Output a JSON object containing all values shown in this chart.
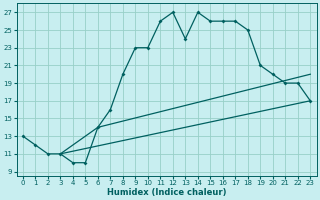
{
  "xlabel": "Humidex (Indice chaleur)",
  "bg_color": "#c8eef0",
  "grid_color": "#98d0c8",
  "line_color": "#006060",
  "xlim": [
    -0.5,
    23.5
  ],
  "ylim": [
    8.5,
    28
  ],
  "xticks": [
    0,
    1,
    2,
    3,
    4,
    5,
    6,
    7,
    8,
    9,
    10,
    11,
    12,
    13,
    14,
    15,
    16,
    17,
    18,
    19,
    20,
    21,
    22,
    23
  ],
  "yticks": [
    9,
    11,
    13,
    15,
    17,
    19,
    21,
    23,
    25,
    27
  ],
  "line1_x": [
    0,
    1,
    2,
    3,
    4,
    5,
    6,
    7,
    8,
    9,
    10,
    11,
    12,
    13,
    14,
    15,
    16,
    17,
    18,
    19,
    20,
    21,
    22,
    23
  ],
  "line1_y": [
    13,
    12,
    11,
    11,
    10,
    10,
    14,
    16,
    20,
    23,
    23,
    26,
    27,
    24,
    27,
    26,
    26,
    26,
    25,
    21,
    20,
    19,
    19,
    17
  ],
  "line2_x": [
    3,
    23
  ],
  "line2_y": [
    11,
    17
  ],
  "line3_x": [
    3,
    6,
    23
  ],
  "line3_y": [
    11,
    14,
    20
  ]
}
